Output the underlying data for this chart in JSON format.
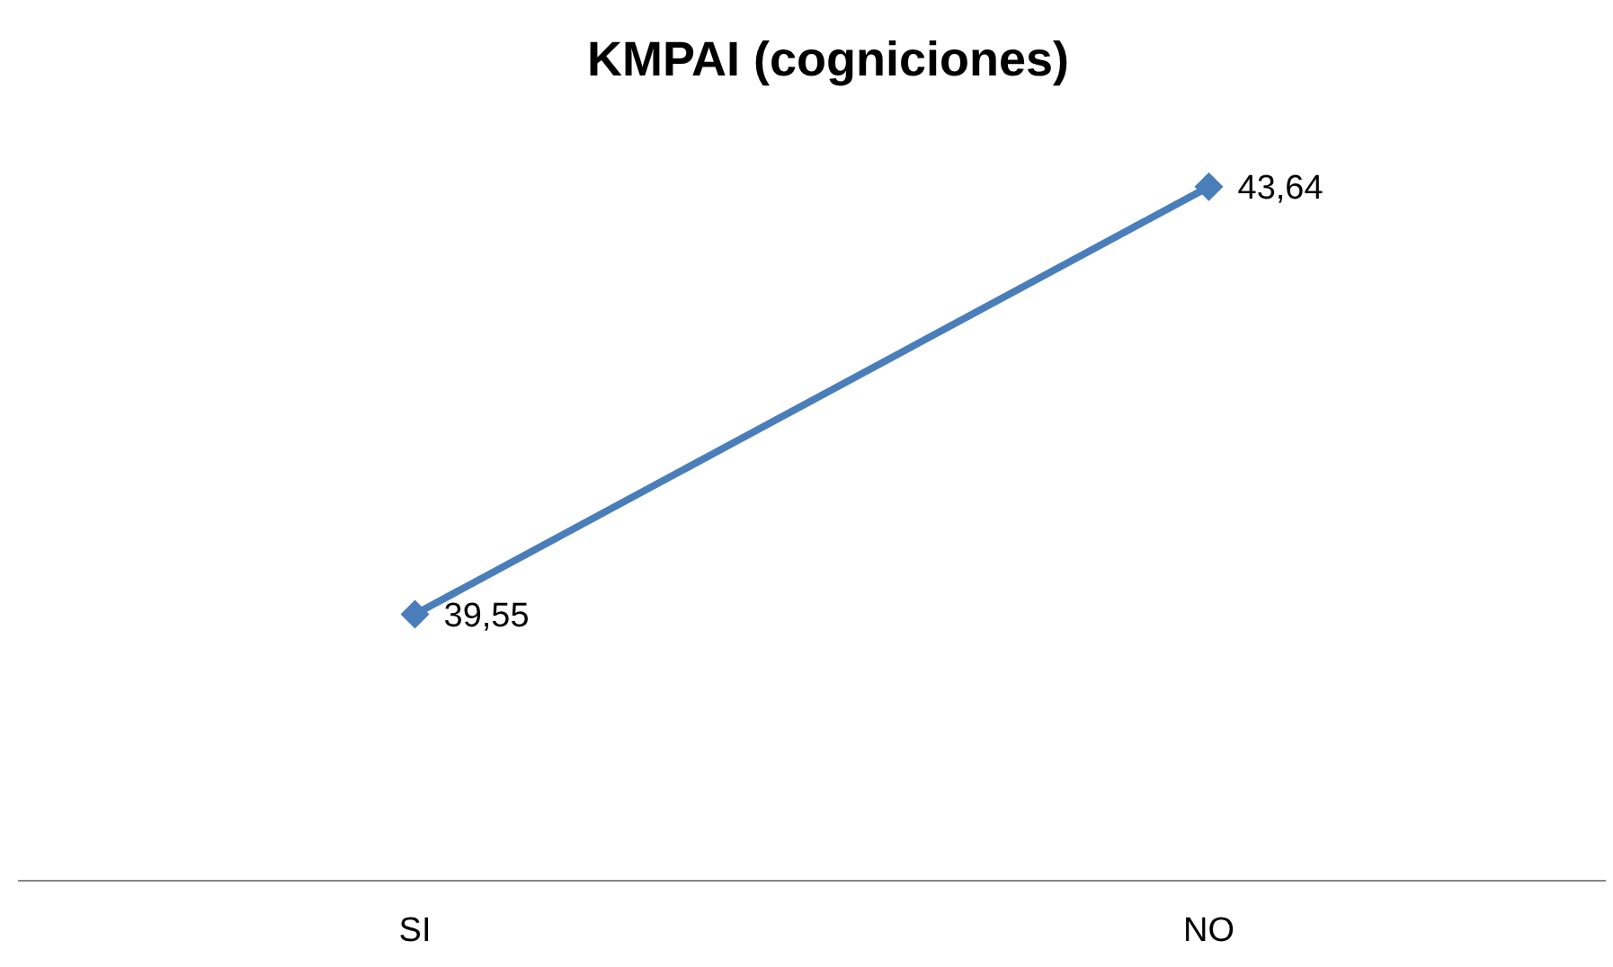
{
  "chart_data": {
    "type": "line",
    "title": "KMPAI (cogniciones)",
    "categories": [
      "SI",
      "NO"
    ],
    "series": [
      {
        "color": "#4a7ebb",
        "values": [
          39.55,
          43.64
        ],
        "value_labels": [
          "39,55",
          "43,64"
        ]
      }
    ],
    "marker": "diamond",
    "line_style": "solid",
    "grid": false,
    "legend": false
  }
}
